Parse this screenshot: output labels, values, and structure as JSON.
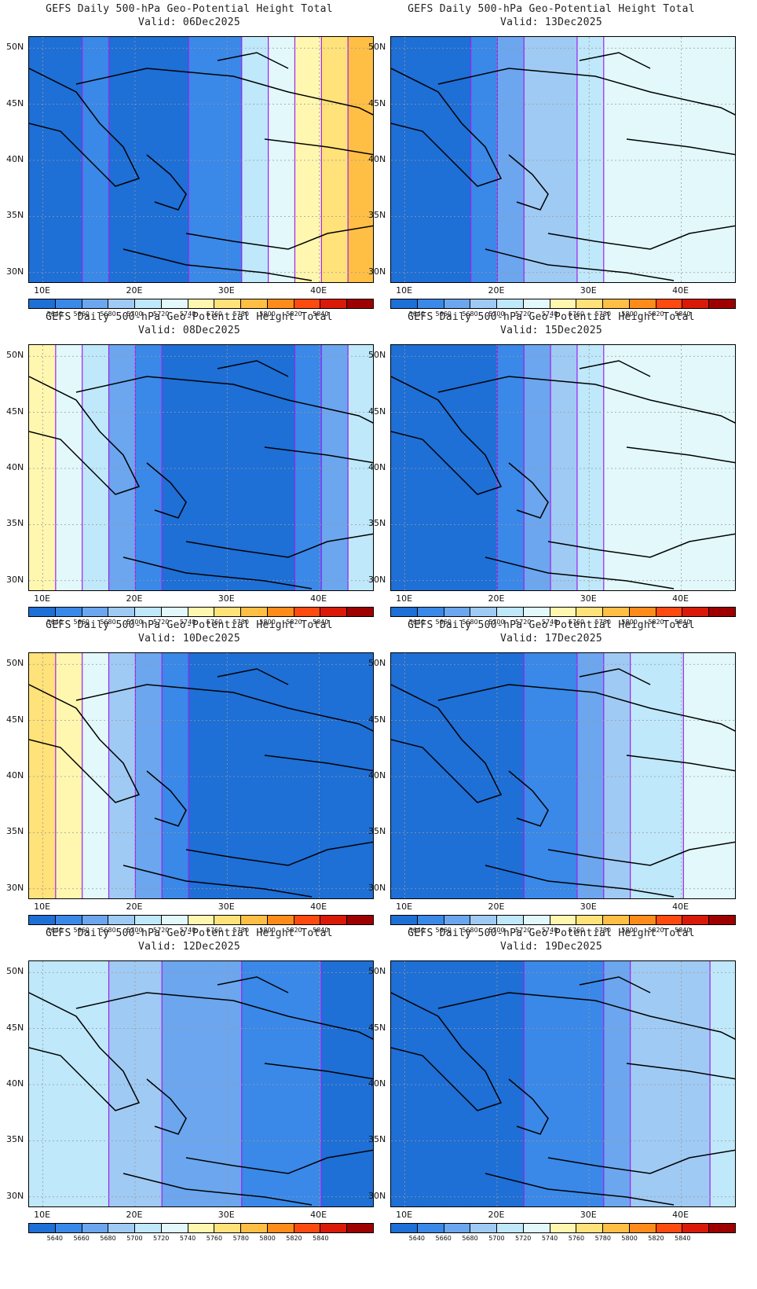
{
  "panels": [
    {
      "title": "GEFS Daily 500-hPa Geo-Potential Height Total",
      "valid": "Valid: 06Dec2025",
      "levels": [
        0,
        0,
        1,
        0,
        0,
        0,
        1,
        1,
        4,
        5,
        6,
        7,
        8
      ]
    },
    {
      "title": "GEFS Daily 500-hPa Geo-Potential Height Total",
      "valid": "Valid: 13Dec2025",
      "levels": [
        0,
        0,
        0,
        1,
        2,
        3,
        3,
        4,
        5,
        5,
        5,
        5,
        5
      ]
    },
    {
      "title": "GEFS Daily 500-hPa Geo-Potential Height Total",
      "valid": "Valid: 08Dec2025",
      "levels": [
        6,
        5,
        4,
        2,
        1,
        0,
        0,
        0,
        0,
        0,
        1,
        2,
        4
      ]
    },
    {
      "title": "GEFS Daily 500-hPa Geo-Potential Height Total",
      "valid": "Valid: 15Dec2025",
      "levels": [
        0,
        0,
        0,
        0,
        1,
        2,
        3,
        4,
        5,
        5,
        5,
        5,
        5
      ]
    },
    {
      "title": "GEFS Daily 500-hPa Geo-Potential Height Total",
      "valid": "Valid: 10Dec2025",
      "levels": [
        7,
        6,
        5,
        3,
        2,
        1,
        0,
        0,
        0,
        0,
        0,
        0,
        0
      ]
    },
    {
      "title": "GEFS Daily 500-hPa Geo-Potential Height Total",
      "valid": "Valid: 17Dec2025",
      "levels": [
        0,
        0,
        0,
        0,
        0,
        1,
        1,
        2,
        3,
        4,
        4,
        5,
        5
      ]
    },
    {
      "title": "GEFS Daily 500-hPa Geo-Potential Height Total",
      "valid": "Valid: 12Dec2025",
      "levels": [
        4,
        4,
        4,
        3,
        3,
        2,
        2,
        2,
        1,
        1,
        1,
        0,
        0
      ]
    },
    {
      "title": "GEFS Daily 500-hPa Geo-Potential Height Total",
      "valid": "Valid: 19Dec2025",
      "levels": [
        0,
        0,
        0,
        0,
        0,
        1,
        1,
        1,
        2,
        3,
        3,
        3,
        4
      ]
    }
  ],
  "lat_labels": [
    "50N",
    "45N",
    "40N",
    "35N",
    "30N"
  ],
  "lon_labels": [
    "10E",
    "20E",
    "30E",
    "40E"
  ],
  "colorbar_labels": [
    "5640",
    "5660",
    "5680",
    "5700",
    "5720",
    "5740",
    "5760",
    "5780",
    "5800",
    "5820",
    "5840"
  ],
  "colors": [
    "#1e6fd6",
    "#3a88e8",
    "#6ba6ee",
    "#9fcaf4",
    "#bfe8fa",
    "#e2f8fb",
    "#fff7b0",
    "#ffe27a",
    "#ffbf45",
    "#ff8c1a",
    "#ff4a0f",
    "#d91a08",
    "#9e0000"
  ],
  "contour_color": "#a020f0",
  "lat_range": [
    29,
    51
  ],
  "lon_range": [
    8.5,
    46
  ],
  "lat_ticks": [
    50,
    45,
    40,
    35,
    30
  ],
  "lon_ticks": [
    10,
    20,
    30,
    40
  ]
}
